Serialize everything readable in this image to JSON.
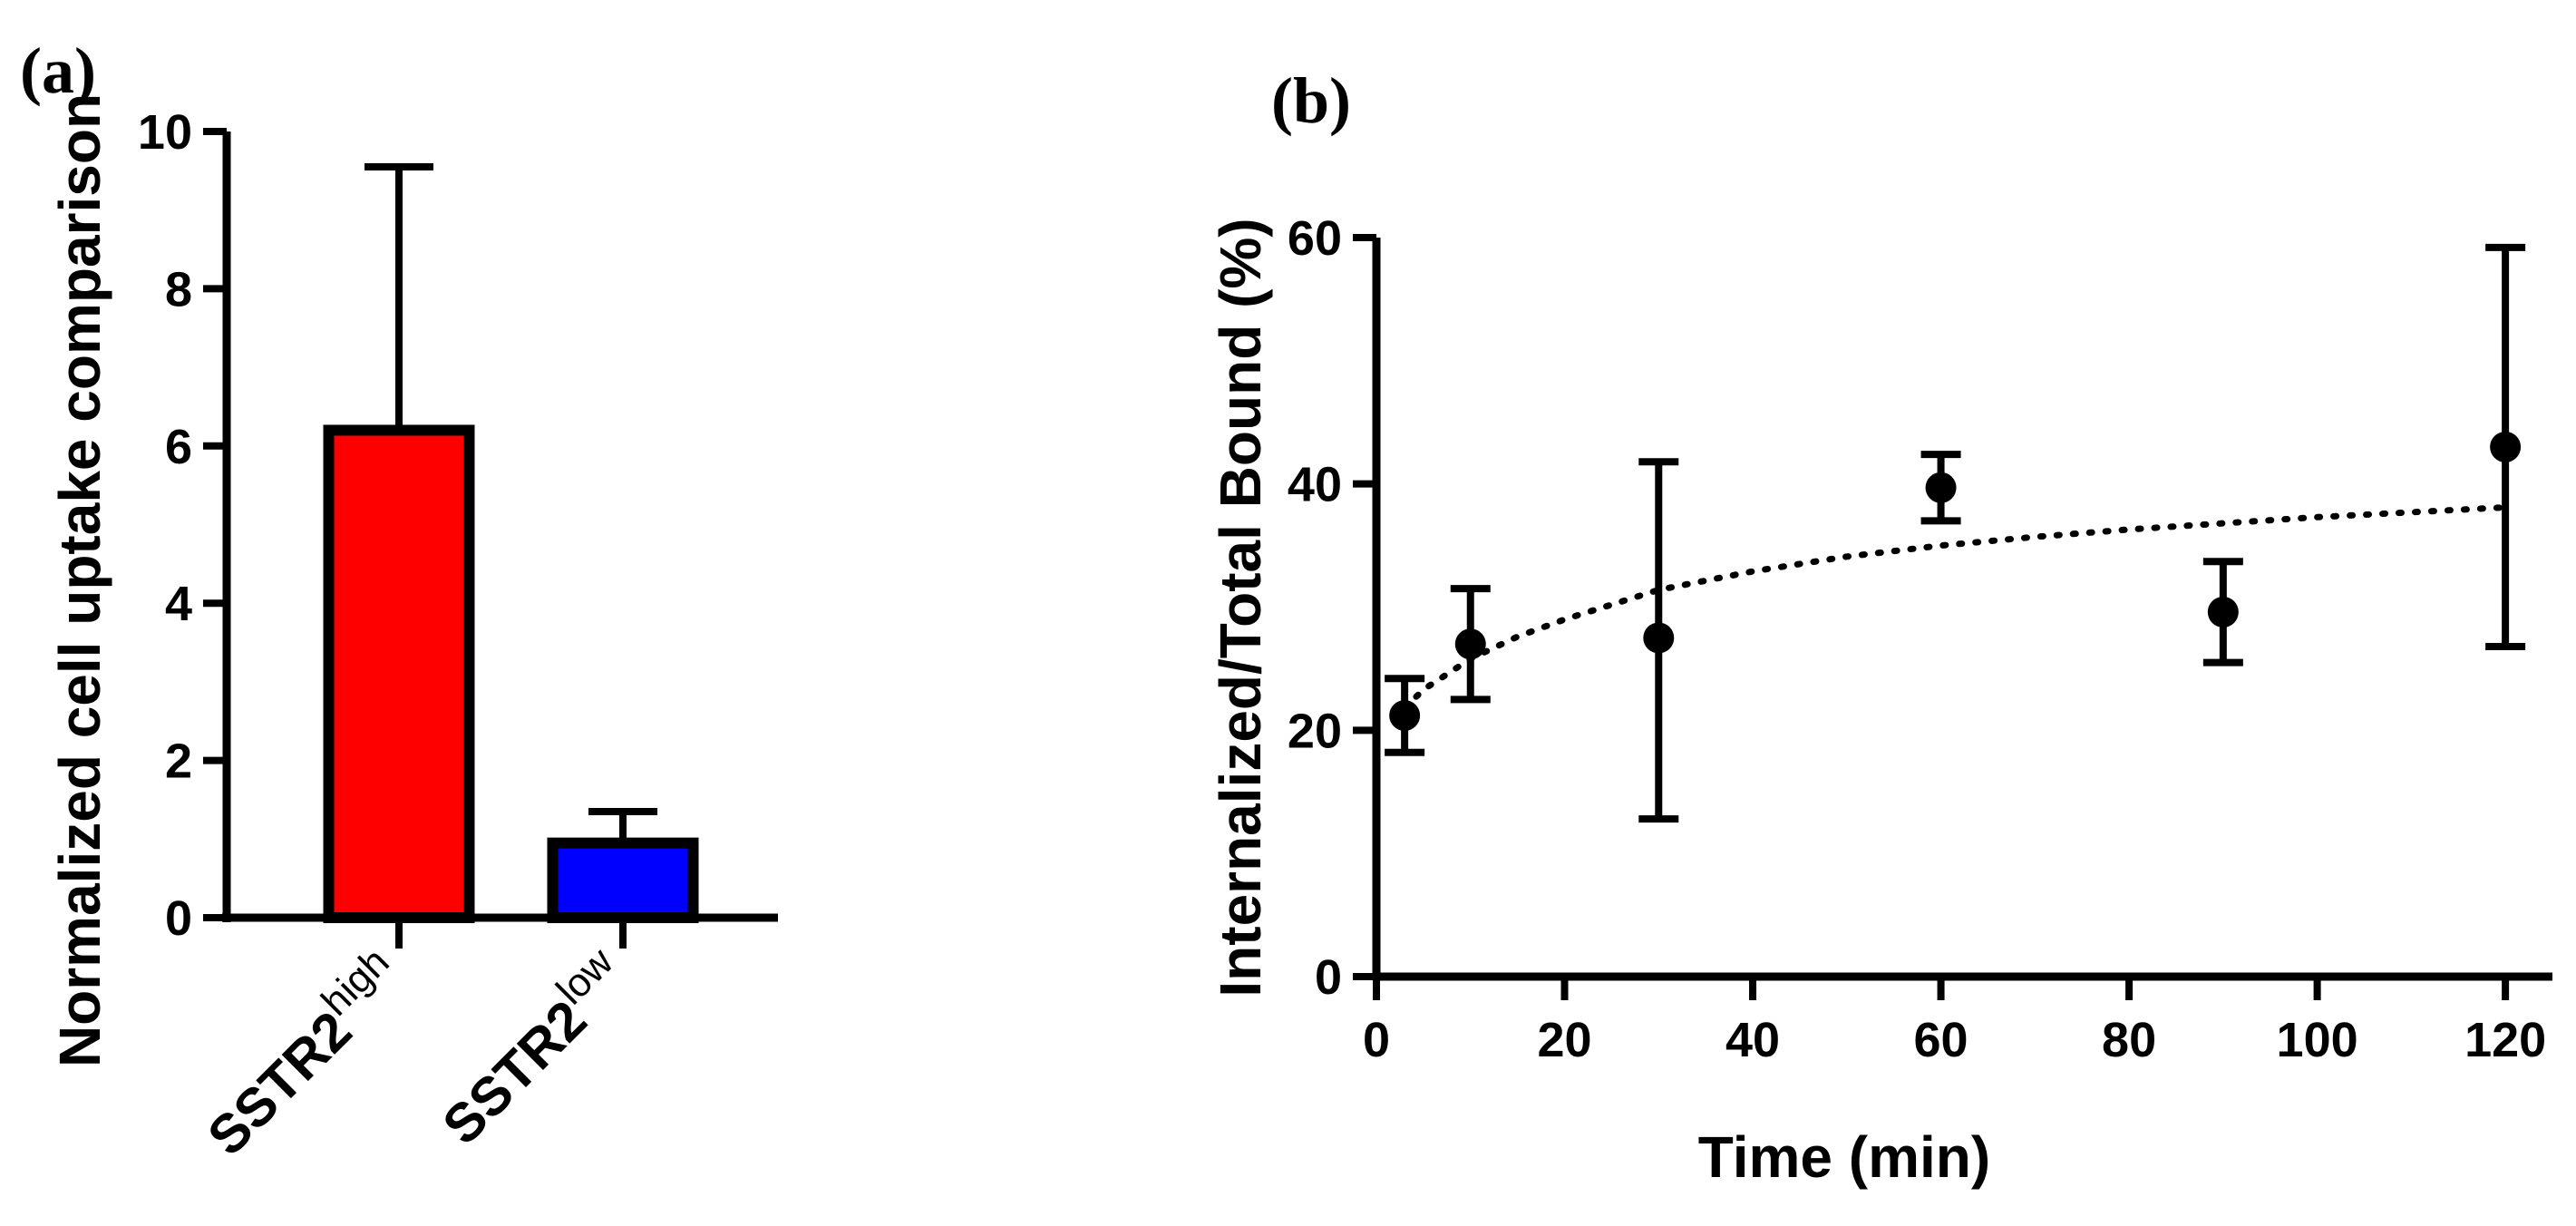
{
  "chart_data": [
    {
      "panel_label": "(a)",
      "type": "bar",
      "ylabel": "Normalized cell uptake comparison",
      "xlabel": "",
      "ylim": [
        0,
        10
      ],
      "yticks": [
        "0",
        "2",
        "4",
        "6",
        "8",
        "10"
      ],
      "categories": [
        {
          "name": "SSTR2",
          "superscript": "high"
        },
        {
          "name": "SSTR2",
          "superscript": "low"
        }
      ],
      "values": [
        6.2,
        0.95
      ],
      "error_upper": [
        9.55,
        1.35
      ],
      "colors": [
        "#ff0000",
        "#0000ff"
      ]
    },
    {
      "panel_label": "(b)",
      "type": "scatter",
      "xlabel": "Time (min)",
      "ylabel": "Internalized/Total Bound (%)",
      "xlim": [
        0,
        125
      ],
      "ylim": [
        0,
        60
      ],
      "xticks": [
        "0",
        "20",
        "40",
        "60",
        "80",
        "100",
        "120"
      ],
      "yticks": [
        "0",
        "20",
        "40",
        "60"
      ],
      "points": [
        {
          "x": 3,
          "y": 21.2,
          "err_low": 18.2,
          "err_high": 24.2
        },
        {
          "x": 10,
          "y": 27.0,
          "err_low": 22.5,
          "err_high": 31.5
        },
        {
          "x": 30,
          "y": 27.5,
          "err_low": 12.8,
          "err_high": 41.8
        },
        {
          "x": 60,
          "y": 39.7,
          "err_low": 37.0,
          "err_high": 42.4
        },
        {
          "x": 90,
          "y": 29.6,
          "err_low": 25.5,
          "err_high": 33.7
        },
        {
          "x": 120,
          "y": 43.0,
          "err_low": 26.8,
          "err_high": 59.2
        }
      ],
      "fit_curve": {
        "style": "dotted",
        "x": [
          3,
          5,
          10,
          15,
          20,
          30,
          40,
          50,
          60,
          70,
          80,
          90,
          100,
          110,
          120
        ],
        "y": [
          21.8,
          23.3,
          25.8,
          27.6,
          29.0,
          31.4,
          32.9,
          34.1,
          35.0,
          35.7,
          36.3,
          36.8,
          37.3,
          37.7,
          38.1
        ]
      }
    }
  ]
}
